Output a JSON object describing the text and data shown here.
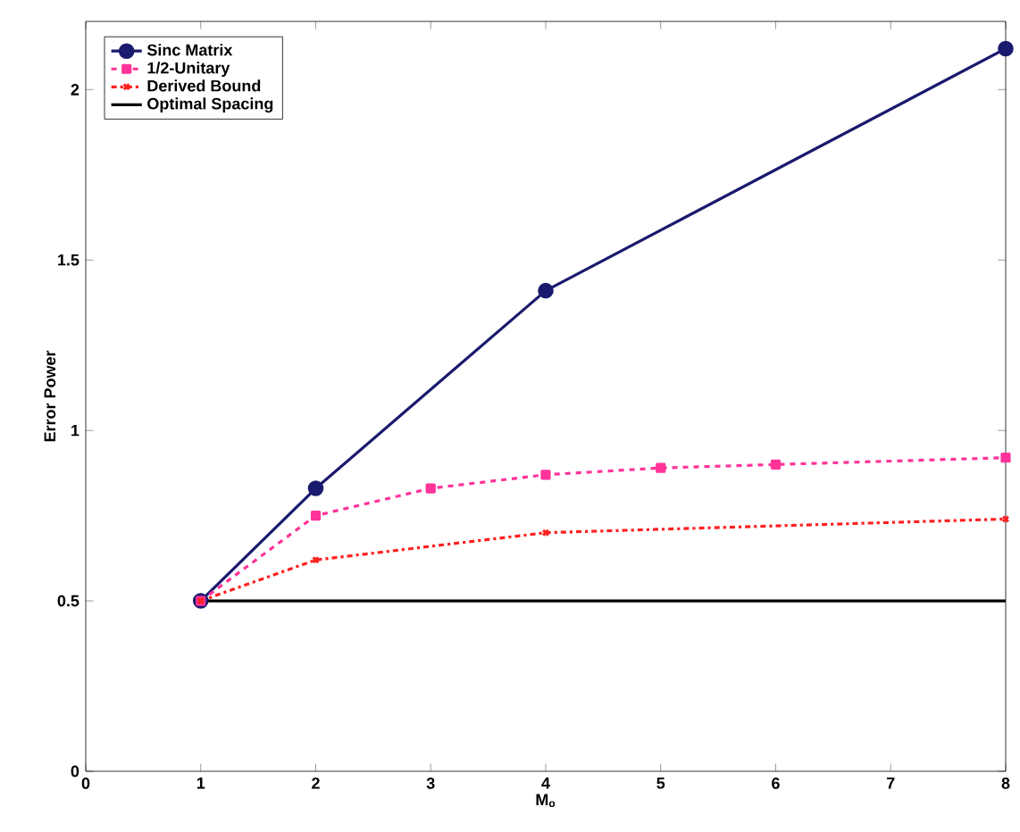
{
  "chart_data": {
    "type": "line",
    "xlabel": "M$_{o}$",
    "ylabel": "Error Power",
    "xlim": [
      0,
      8
    ],
    "ylim": [
      0,
      2.2
    ],
    "xticks": [
      0,
      1,
      2,
      3,
      4,
      5,
      6,
      7,
      8
    ],
    "yticks": [
      0,
      0.5,
      1,
      1.5,
      2
    ],
    "legend": "top left",
    "grid": false,
    "series": [
      {
        "name": "Sinc Matrix",
        "color": "#1a1a6e",
        "x": [
          1,
          2,
          4,
          8
        ],
        "values": [
          0.5,
          0.83,
          1.41,
          2.12
        ],
        "marker": "circle",
        "line_style": "solid"
      },
      {
        "name": "1/2-Unitary",
        "color": "#ff3399",
        "x": [
          1,
          2,
          3,
          4,
          5,
          6,
          8
        ],
        "values": [
          0.5,
          0.75,
          0.83,
          0.87,
          0.89,
          0.9,
          0.92
        ],
        "marker": "square",
        "line_style": "dashed"
      },
      {
        "name": "Derived Bound",
        "color": "#ff2020",
        "x": [
          1,
          2,
          4,
          8
        ],
        "values": [
          0.5,
          0.62,
          0.7,
          0.74
        ],
        "marker": "cross",
        "line_style": "dashdot"
      },
      {
        "name": "Optimal Spacing",
        "color": "#000000",
        "x": [
          1,
          8
        ],
        "values": [
          0.5,
          0.5
        ],
        "marker": "none",
        "line_style": "solid"
      }
    ]
  }
}
